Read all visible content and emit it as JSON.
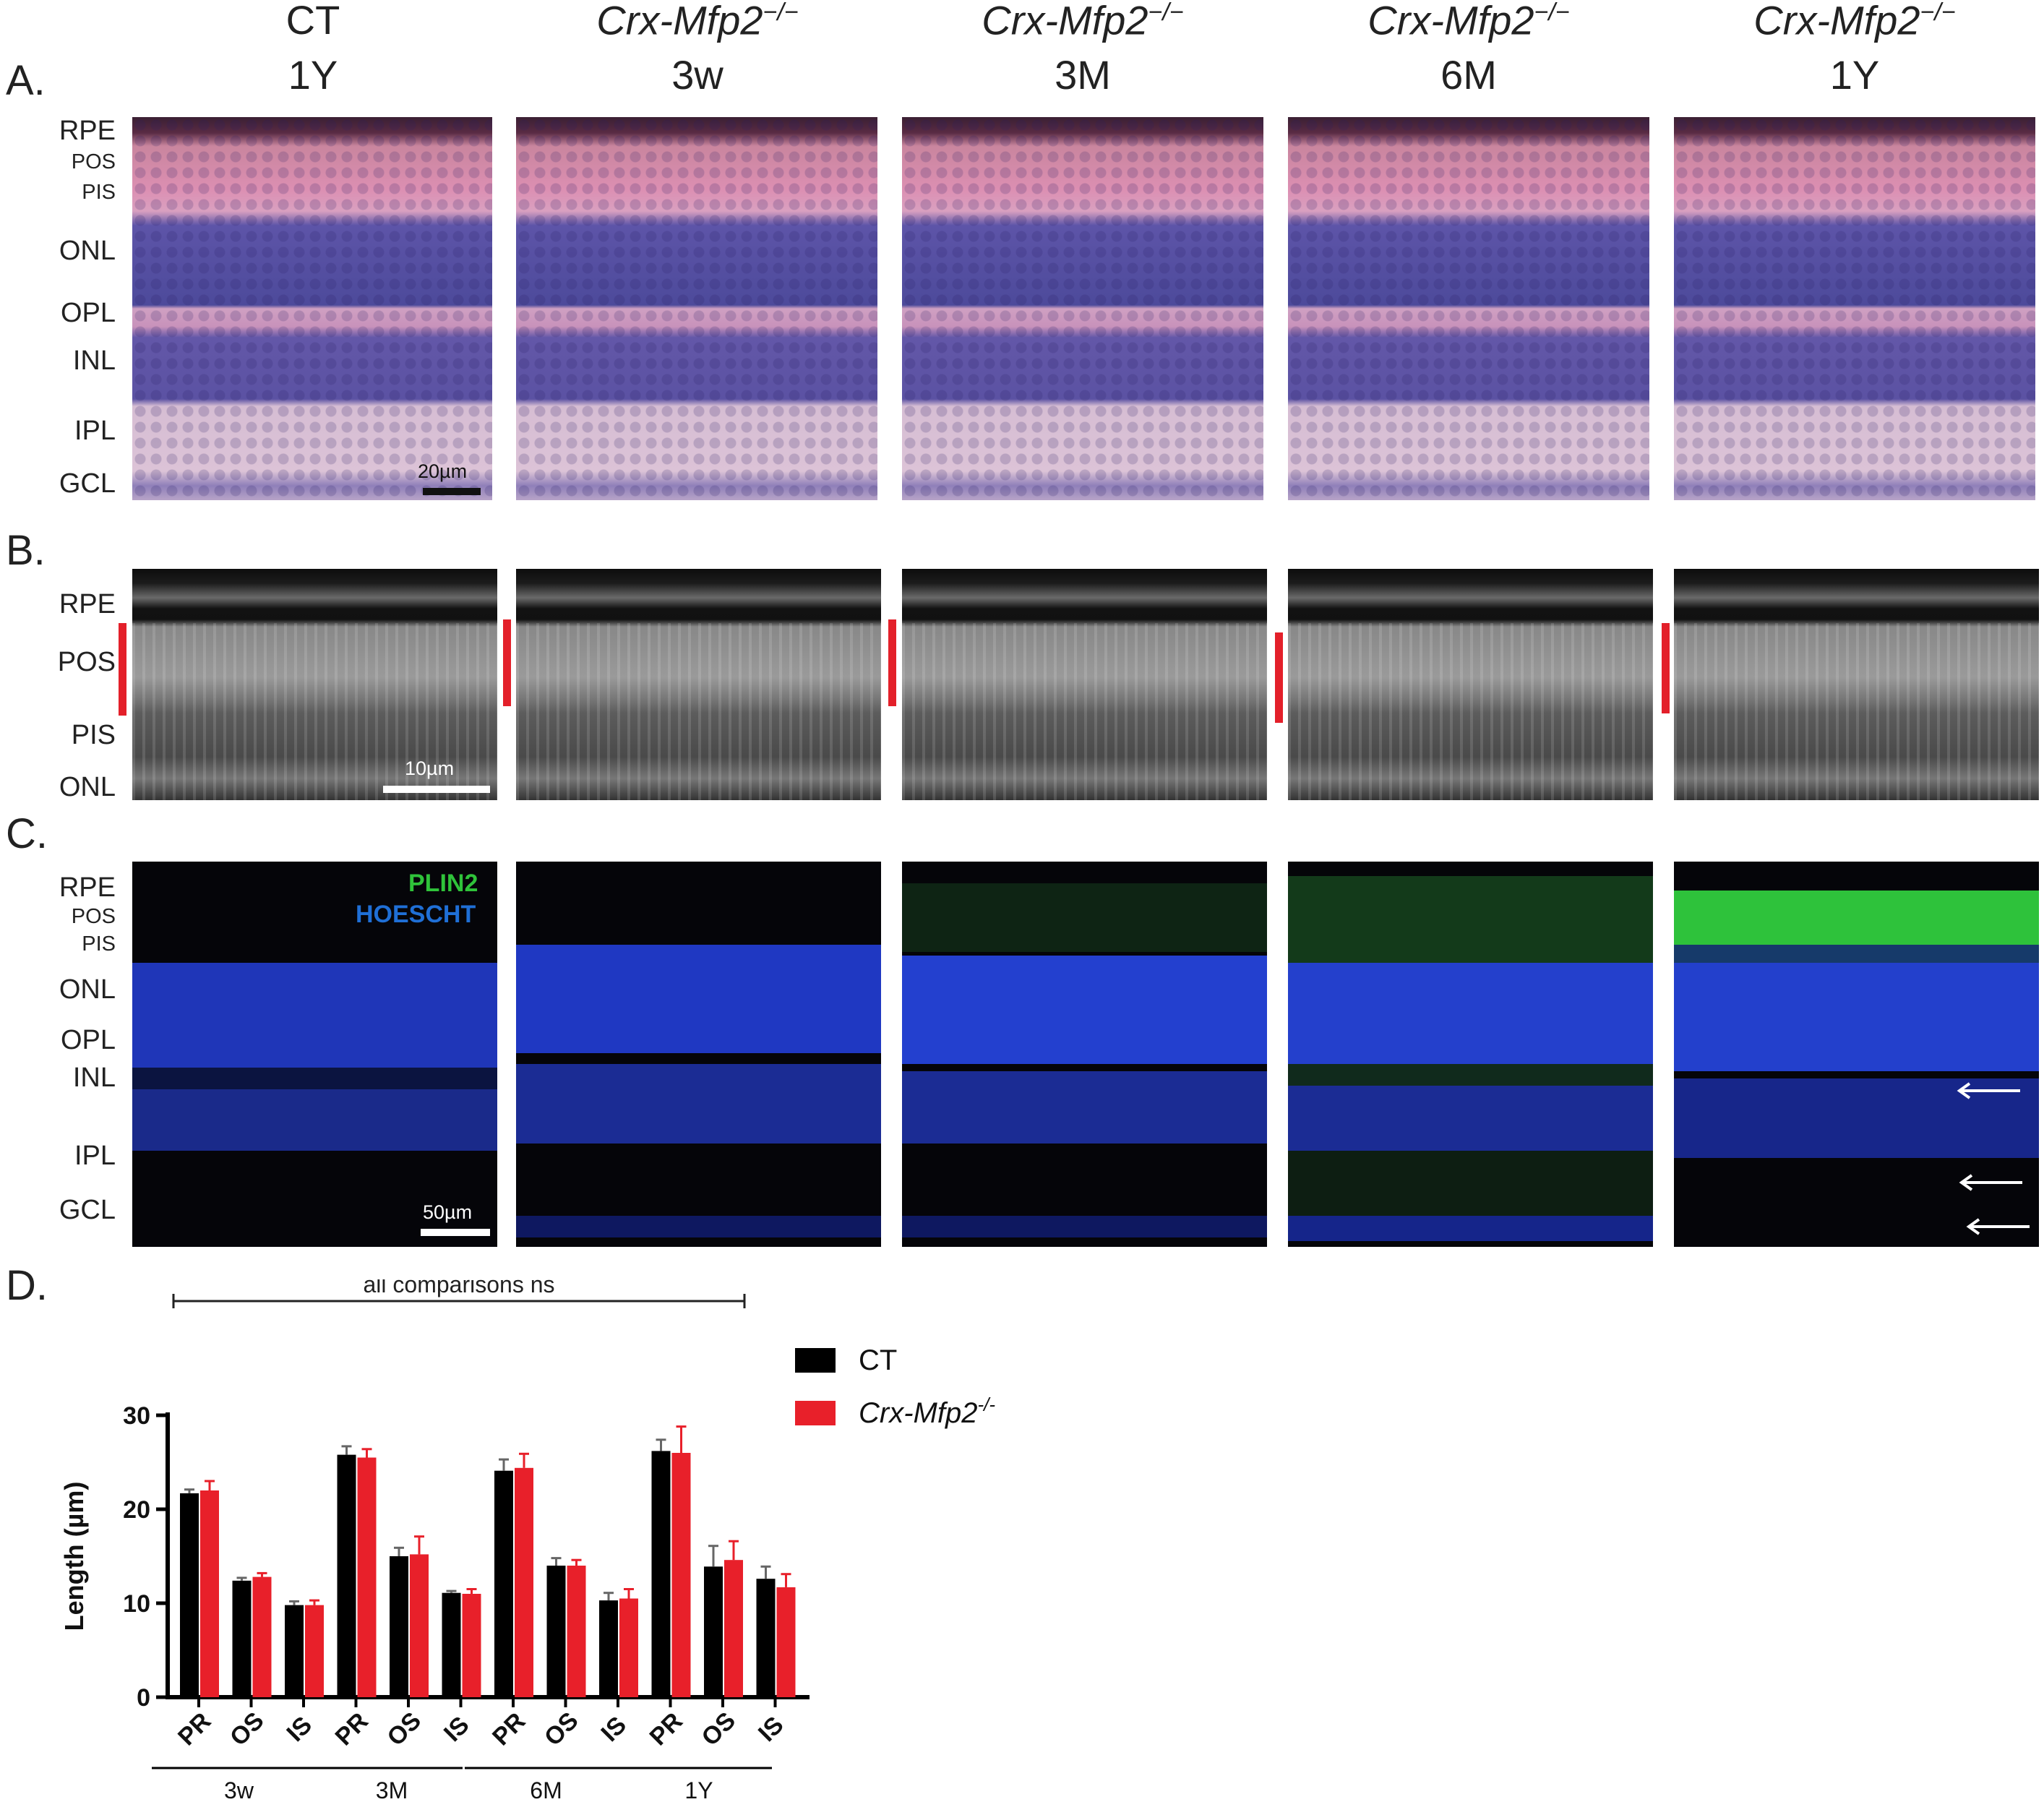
{
  "panels": {
    "a": "A.",
    "b": "B.",
    "c": "C.",
    "d": "D."
  },
  "columns": [
    {
      "genotype": "CT",
      "sup": "",
      "age": "1Y"
    },
    {
      "genotype": "Crx-Mfp2",
      "sup": "−/−",
      "age": "3w"
    },
    {
      "genotype": "Crx-Mfp2",
      "sup": "−/−",
      "age": "3M"
    },
    {
      "genotype": "Crx-Mfp2",
      "sup": "−/−",
      "age": "6M"
    },
    {
      "genotype": "Crx-Mfp2",
      "sup": "−/−",
      "age": "1Y"
    }
  ],
  "layers_a": [
    "RPE",
    "POS",
    "PIS",
    "ONL",
    "OPL",
    "INL",
    "IPL",
    "GCL"
  ],
  "layers_b": [
    "RPE",
    "POS",
    "PIS",
    "ONL"
  ],
  "layers_c": [
    "RPE",
    "POS",
    "PIS",
    "ONL",
    "OPL",
    "INL",
    "IPL",
    "GCL"
  ],
  "scalebars": {
    "a": "20µm",
    "b": "10µm",
    "c": "50µm"
  },
  "stain_labels": {
    "plin2": "PLIN2",
    "hoescht": "HOESCHT"
  },
  "colors": {
    "ct": "#000000",
    "ko": "#e8202a",
    "plin2": "#2fc33a",
    "hoescht": "#1f6fd6"
  },
  "chart_data": {
    "type": "bar",
    "ylabel": "Length (µm)",
    "ylim": [
      0,
      30
    ],
    "yticks": [
      0,
      10,
      20,
      30
    ],
    "groups": [
      "3w",
      "3M",
      "6M",
      "1Y"
    ],
    "categories": [
      "PR",
      "OS",
      "IS",
      "PR",
      "OS",
      "IS",
      "PR",
      "OS",
      "IS",
      "PR",
      "OS",
      "IS"
    ],
    "annotation": "all comparisons ns",
    "legend": {
      "ct": "CT",
      "ko_name": "Crx-Mfp2",
      "ko_sup": "-/-"
    },
    "series": [
      {
        "name": "CT",
        "values": [
          21.7,
          12.4,
          9.8,
          25.8,
          15.0,
          11.1,
          24.1,
          14.0,
          10.3,
          26.2,
          13.9,
          12.6
        ],
        "errors": [
          0.4,
          0.3,
          0.4,
          0.9,
          0.9,
          0.2,
          1.2,
          0.8,
          0.8,
          1.2,
          2.2,
          1.3
        ]
      },
      {
        "name": "Crx-Mfp2-/-",
        "values": [
          22.0,
          12.8,
          9.8,
          25.5,
          15.2,
          11.0,
          24.4,
          14.0,
          10.5,
          26.0,
          14.6,
          11.7
        ],
        "errors": [
          1.0,
          0.4,
          0.5,
          0.9,
          1.9,
          0.5,
          1.5,
          0.6,
          1.0,
          2.8,
          2.0,
          1.4
        ]
      }
    ]
  }
}
